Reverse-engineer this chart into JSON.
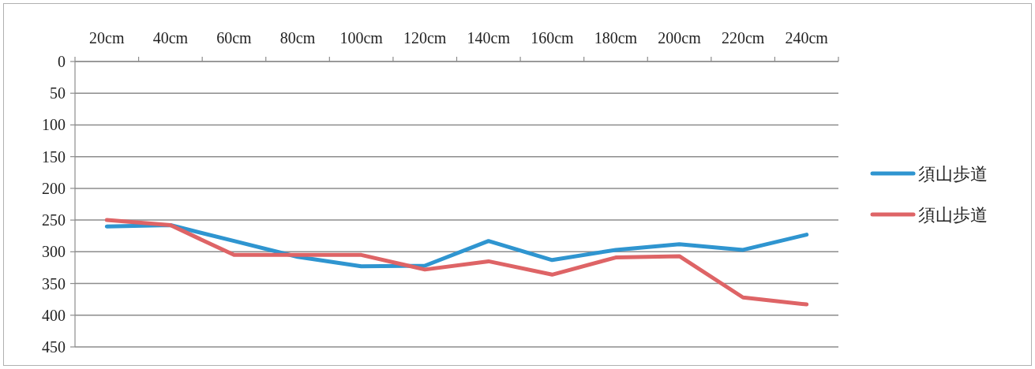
{
  "chart_data": {
    "type": "line",
    "categories": [
      "20cm",
      "40cm",
      "60cm",
      "80cm",
      "100cm",
      "120cm",
      "140cm",
      "160cm",
      "180cm",
      "200cm",
      "220cm",
      "240cm"
    ],
    "series": [
      {
        "name": "須山歩道",
        "color": "#2f95d0",
        "values": [
          260,
          258,
          283,
          308,
          323,
          322,
          283,
          313,
          297,
          288,
          297,
          273
        ]
      },
      {
        "name": "須山歩道",
        "color": "#de6466",
        "values": [
          250,
          258,
          305,
          305,
          305,
          328,
          315,
          336,
          309,
          307,
          372,
          383
        ]
      }
    ],
    "ylim": [
      450,
      0
    ],
    "yticks": [
      0,
      50,
      100,
      150,
      200,
      250,
      300,
      350,
      400,
      450
    ],
    "grid": "y",
    "legend": "right",
    "marker": "none",
    "line_style": "solid"
  }
}
